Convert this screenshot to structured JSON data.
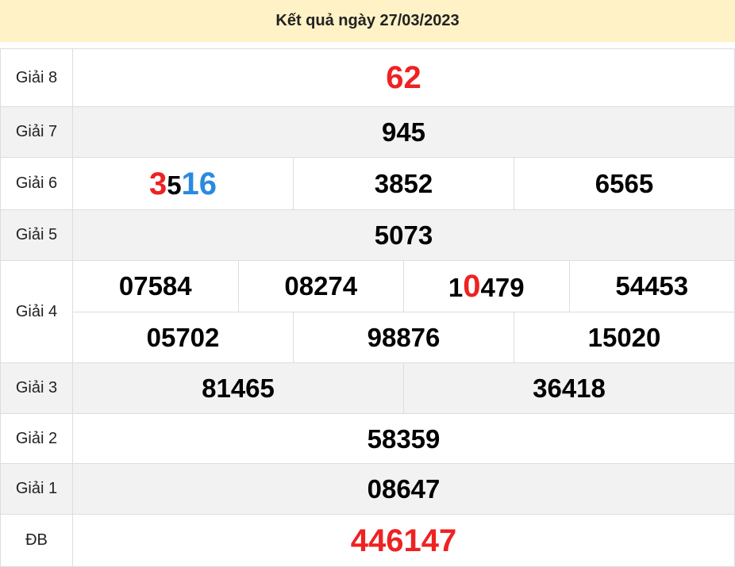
{
  "header": {
    "title": "Kết quả ngày 27/03/2023",
    "background": "#fff2c6"
  },
  "colors": {
    "red": "#ee2222",
    "blue": "#2a8ae0",
    "black": "#000000"
  },
  "prizes": [
    {
      "label": "Giải 8",
      "rows": [
        [
          [
            {
              "text": "62",
              "color": "red",
              "big": true
            }
          ]
        ]
      ]
    },
    {
      "label": "Giải 7",
      "rows": [
        [
          [
            {
              "text": "945"
            }
          ]
        ]
      ]
    },
    {
      "label": "Giải 6",
      "rows": [
        [
          [
            {
              "text": "3",
              "color": "red",
              "big": true
            },
            {
              "text": "5"
            },
            {
              "text": "16",
              "color": "blue",
              "big": true
            }
          ],
          [
            {
              "text": "3852"
            }
          ],
          [
            {
              "text": "6565"
            }
          ]
        ]
      ]
    },
    {
      "label": "Giải 5",
      "rows": [
        [
          [
            {
              "text": "5073"
            }
          ]
        ]
      ]
    },
    {
      "label": "Giải 4",
      "rows": [
        [
          [
            {
              "text": "07584"
            }
          ],
          [
            {
              "text": "08274"
            }
          ],
          [
            {
              "text": "1"
            },
            {
              "text": "0",
              "color": "red",
              "big": true
            },
            {
              "text": "479"
            }
          ],
          [
            {
              "text": "54453"
            }
          ]
        ],
        [
          [
            {
              "text": "05702"
            }
          ],
          [
            {
              "text": "98876"
            }
          ],
          [
            {
              "text": "15020"
            }
          ]
        ]
      ]
    },
    {
      "label": "Giải 3",
      "rows": [
        [
          [
            {
              "text": "81465"
            }
          ],
          [
            {
              "text": "36418"
            }
          ]
        ]
      ]
    },
    {
      "label": "Giải 2",
      "rows": [
        [
          [
            {
              "text": "58359"
            }
          ]
        ]
      ]
    },
    {
      "label": "Giải 1",
      "rows": [
        [
          [
            {
              "text": "08647"
            }
          ]
        ]
      ]
    },
    {
      "label": "ĐB",
      "rows": [
        [
          [
            {
              "text": "446147",
              "color": "red",
              "big": true
            }
          ]
        ]
      ]
    }
  ]
}
